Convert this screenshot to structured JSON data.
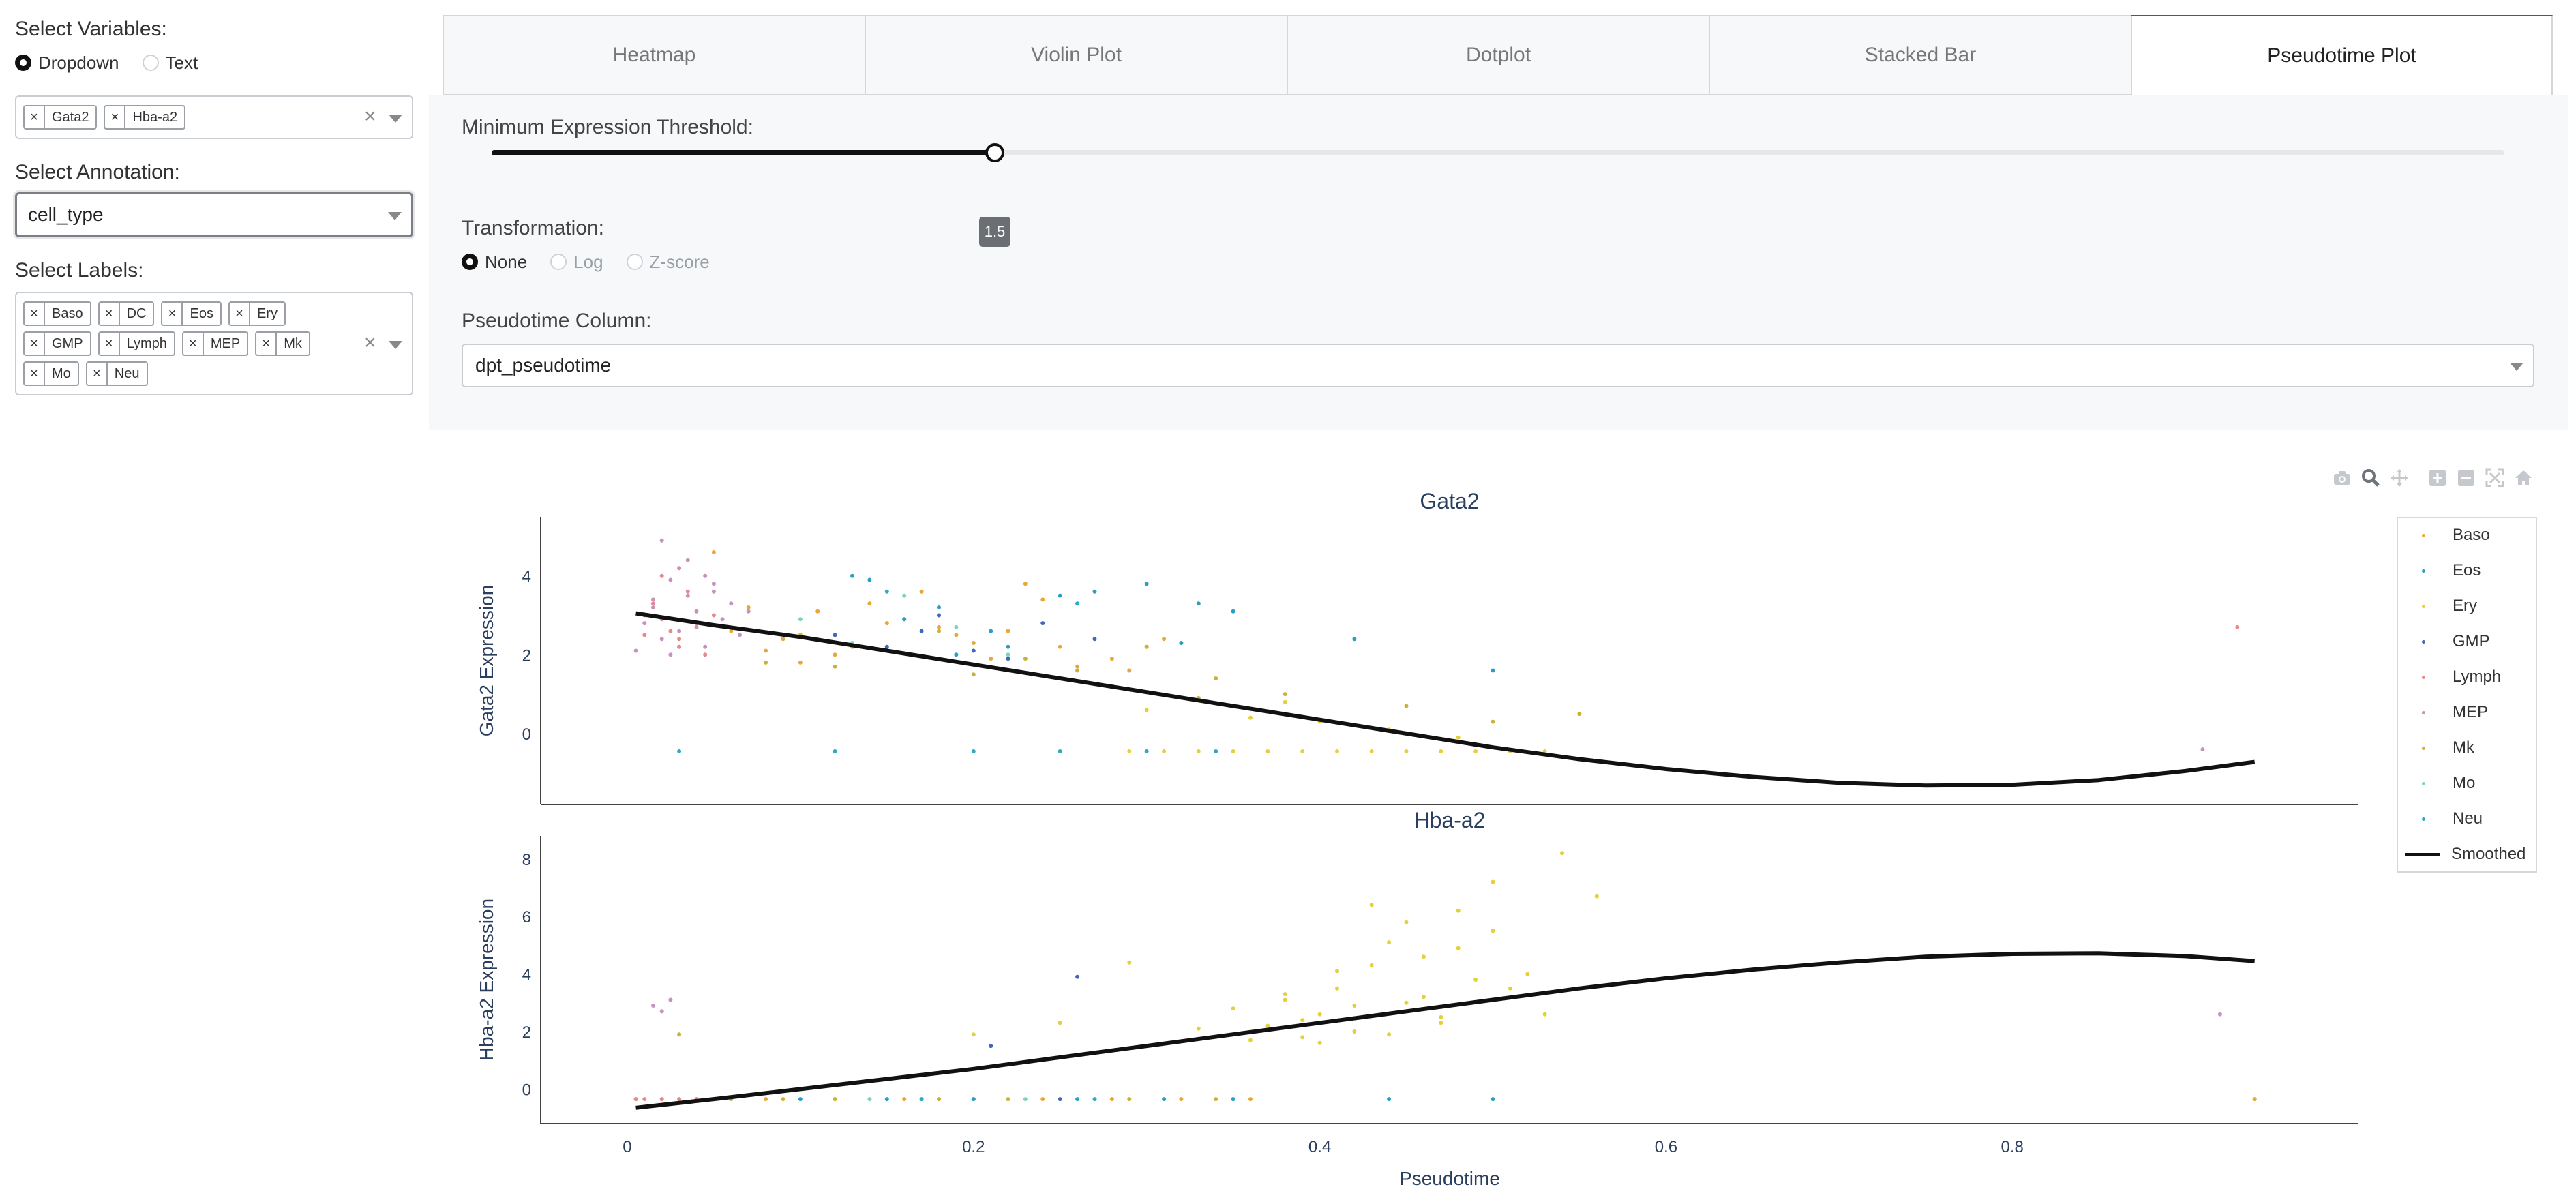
{
  "sidebar": {
    "variables_label": "Select Variables:",
    "variable_mode": {
      "options": [
        "Dropdown",
        "Text"
      ],
      "selected": "Dropdown"
    },
    "variables": [
      "Gata2",
      "Hba-a2"
    ],
    "annotation_label": "Select Annotation:",
    "annotation_value": "cell_type",
    "labels_label": "Select Labels:",
    "labels": [
      "Baso",
      "DC",
      "Eos",
      "Ery",
      "GMP",
      "Lymph",
      "MEP",
      "Mk",
      "Mo",
      "Neu"
    ],
    "clear_symbol": "×"
  },
  "tabs": [
    {
      "label": "Heatmap",
      "active": false
    },
    {
      "label": "Violin Plot",
      "active": false
    },
    {
      "label": "Dotplot",
      "active": false
    },
    {
      "label": "Stacked Bar",
      "active": false
    },
    {
      "label": "Pseudotime Plot",
      "active": true
    }
  ],
  "panel": {
    "threshold_label": "Minimum Expression Threshold:",
    "threshold": {
      "value": 1.5,
      "display": "1.5",
      "min": 0,
      "max": 6
    },
    "transformation_label": "Transformation:",
    "transformation": {
      "options": [
        "None",
        "Log",
        "Z-score"
      ],
      "selected": "None"
    },
    "pseudotime_label": "Pseudotime Column:",
    "pseudotime_value": "dpt_pseudotime"
  },
  "modebar_icons": [
    "camera-icon",
    "zoom-icon",
    "pan-icon",
    "zoom-in-icon",
    "zoom-out-icon",
    "autoscale-icon",
    "reset-axes-icon"
  ],
  "legend_colors": {
    "Baso": "#e8a838",
    "Eos": "#2a9fc4",
    "Ery": "#e6d03a",
    "GMP": "#3f68b8",
    "Lymph": "#e48a8a",
    "MEP": "#c991bd",
    "Mk": "#c9b235",
    "Mo": "#7fd3bf",
    "Neu": "#2fa8c8",
    "Smoothed": "#111111"
  },
  "chart_data": [
    {
      "type": "scatter",
      "title": "Gata2",
      "xlabel": "",
      "ylabel": "Gata2 Expression",
      "xlim": [
        -0.05,
        1.0
      ],
      "ylim": [
        -1.8,
        5.5
      ],
      "x_ticks": [
        0,
        0.2,
        0.4,
        0.6,
        0.8
      ],
      "y_ticks": [
        0,
        2,
        4
      ],
      "grid": false,
      "legend": "right",
      "series": [
        {
          "name": "Baso",
          "x": [
            0.06,
            0.09,
            0.11,
            0.13,
            0.15,
            0.17,
            0.19,
            0.21,
            0.23,
            0.07,
            0.12,
            0.16,
            0.2,
            0.26,
            0.29,
            0.31,
            0.1,
            0.18,
            0.14,
            0.08,
            0.05,
            0.22,
            0.24,
            0.25,
            0.28
          ],
          "y": [
            2.6,
            2.4,
            3.1,
            2.2,
            2.8,
            3.6,
            2.5,
            1.9,
            3.8,
            3.2,
            2.0,
            2.9,
            2.3,
            1.7,
            1.6,
            2.4,
            1.8,
            2.7,
            3.3,
            2.1,
            4.6,
            2.6,
            3.4,
            2.2,
            1.9
          ]
        },
        {
          "name": "Eos",
          "x": [
            0.14,
            0.18,
            0.21,
            0.25,
            0.3,
            0.33,
            0.35,
            0.19,
            0.16,
            0.27,
            0.42,
            0.5,
            0.32,
            0.22,
            0.13
          ],
          "y": [
            3.9,
            3.2,
            2.6,
            3.5,
            3.8,
            3.3,
            3.1,
            2.0,
            2.9,
            3.6,
            2.4,
            1.6,
            2.3,
            2.2,
            4.0
          ]
        },
        {
          "name": "Ery",
          "x": [
            0.29,
            0.31,
            0.33,
            0.35,
            0.37,
            0.39,
            0.41,
            0.43,
            0.45,
            0.47,
            0.49,
            0.51,
            0.53,
            0.3,
            0.36,
            0.44,
            0.48,
            0.4,
            0.55,
            0.38
          ],
          "y": [
            -0.45,
            -0.45,
            -0.45,
            -0.45,
            -0.45,
            -0.45,
            -0.45,
            -0.45,
            -0.45,
            -0.45,
            -0.45,
            -0.45,
            -0.45,
            0.6,
            0.4,
            0.1,
            -0.1,
            0.3,
            0.5,
            0.8
          ]
        },
        {
          "name": "GMP",
          "x": [
            0.12,
            0.15,
            0.18,
            0.2,
            0.24,
            0.27,
            0.22,
            0.17
          ],
          "y": [
            2.5,
            2.2,
            3.0,
            2.1,
            2.8,
            2.4,
            1.9,
            2.6
          ]
        },
        {
          "name": "Lymph",
          "x": [
            0.01,
            0.02,
            0.03,
            0.015,
            0.025,
            0.035,
            0.04,
            0.045,
            0.05,
            0.02,
            0.03,
            0.93
          ],
          "y": [
            2.5,
            2.9,
            2.2,
            3.3,
            2.6,
            3.6,
            2.8,
            2.0,
            3.0,
            4.0,
            2.4,
            2.7
          ]
        },
        {
          "name": "MEP",
          "x": [
            0.005,
            0.01,
            0.015,
            0.02,
            0.025,
            0.03,
            0.035,
            0.04,
            0.045,
            0.05,
            0.055,
            0.06,
            0.01,
            0.02,
            0.03,
            0.04,
            0.05,
            0.025,
            0.035,
            0.015,
            0.045,
            0.065,
            0.07,
            0.91
          ],
          "y": [
            2.1,
            2.8,
            3.4,
            2.4,
            3.9,
            2.6,
            4.4,
            3.1,
            2.2,
            3.6,
            2.9,
            3.3,
            3.0,
            4.9,
            4.2,
            2.7,
            3.8,
            2.0,
            3.5,
            3.2,
            4.0,
            2.5,
            3.1,
            -0.4
          ]
        },
        {
          "name": "Mk",
          "x": [
            0.08,
            0.1,
            0.12,
            0.15,
            0.18,
            0.2,
            0.23,
            0.26,
            0.3,
            0.34,
            0.38,
            0.45,
            0.5,
            0.55,
            0.28,
            0.33
          ],
          "y": [
            1.8,
            2.5,
            1.7,
            2.1,
            2.6,
            1.5,
            1.9,
            1.6,
            2.2,
            1.4,
            1.0,
            0.7,
            0.3,
            0.5,
            1.2,
            0.9
          ]
        },
        {
          "name": "Mo",
          "x": [
            0.1,
            0.13,
            0.16,
            0.19,
            0.22
          ],
          "y": [
            2.9,
            2.3,
            3.5,
            2.7,
            2.0
          ]
        },
        {
          "name": "Neu",
          "x": [
            0.03,
            0.12,
            0.2,
            0.25,
            0.3,
            0.34,
            0.15,
            0.26
          ],
          "y": [
            -0.45,
            -0.45,
            -0.45,
            -0.45,
            -0.45,
            -0.45,
            3.6,
            3.3
          ]
        },
        {
          "name": "Smoothed",
          "mode": "line",
          "x": [
            0.005,
            0.05,
            0.1,
            0.15,
            0.2,
            0.25,
            0.3,
            0.35,
            0.4,
            0.45,
            0.5,
            0.55,
            0.6,
            0.65,
            0.7,
            0.75,
            0.8,
            0.85,
            0.9,
            0.94
          ],
          "y": [
            3.05,
            2.75,
            2.45,
            2.1,
            1.75,
            1.4,
            1.05,
            0.7,
            0.35,
            0.0,
            -0.35,
            -0.65,
            -0.9,
            -1.1,
            -1.25,
            -1.32,
            -1.3,
            -1.18,
            -0.95,
            -0.72
          ]
        }
      ]
    },
    {
      "type": "scatter",
      "title": "Hba-a2",
      "xlabel": "Pseudotime",
      "ylabel": "Hba-a2 Expression",
      "xlim": [
        -0.05,
        1.0
      ],
      "ylim": [
        -1.2,
        8.8
      ],
      "x_ticks": [
        0,
        0.2,
        0.4,
        0.6,
        0.8
      ],
      "y_ticks": [
        0,
        2,
        4,
        6,
        8
      ],
      "grid": false,
      "legend": "right",
      "series": [
        {
          "name": "Baso",
          "x": [
            0.005,
            0.04,
            0.08,
            0.12,
            0.16,
            0.2,
            0.24,
            0.28,
            0.32,
            0.36,
            0.94
          ],
          "y": [
            -0.35,
            -0.35,
            -0.35,
            -0.35,
            -0.35,
            -0.35,
            -0.35,
            -0.35,
            -0.35,
            -0.35,
            -0.35
          ]
        },
        {
          "name": "Eos",
          "x": [
            0.1,
            0.15,
            0.2,
            0.26,
            0.31,
            0.35,
            0.44,
            0.5
          ],
          "y": [
            -0.35,
            -0.35,
            -0.35,
            -0.35,
            -0.35,
            -0.35,
            -0.35,
            -0.35
          ]
        },
        {
          "name": "Ery",
          "x": [
            0.2,
            0.25,
            0.3,
            0.33,
            0.35,
            0.37,
            0.38,
            0.39,
            0.4,
            0.41,
            0.42,
            0.43,
            0.44,
            0.45,
            0.46,
            0.47,
            0.48,
            0.49,
            0.5,
            0.52,
            0.54,
            0.56,
            0.36,
            0.41,
            0.44,
            0.47,
            0.38,
            0.43,
            0.51,
            0.29,
            0.42,
            0.45,
            0.39,
            0.46,
            0.5,
            0.53,
            0.48,
            0.4
          ],
          "y": [
            1.9,
            2.3,
            1.5,
            2.1,
            2.8,
            2.2,
            3.1,
            1.8,
            2.6,
            3.5,
            2.0,
            4.3,
            5.1,
            3.0,
            4.6,
            2.5,
            6.2,
            3.8,
            5.5,
            4.0,
            8.2,
            6.7,
            1.7,
            4.1,
            1.9,
            2.3,
            3.3,
            6.4,
            3.5,
            4.4,
            2.9,
            5.8,
            2.4,
            3.2,
            7.2,
            2.6,
            4.9,
            1.6
          ]
        },
        {
          "name": "GMP",
          "x": [
            0.21,
            0.26,
            0.25
          ],
          "y": [
            1.5,
            3.9,
            -0.35
          ]
        },
        {
          "name": "Lymph",
          "x": [
            0.005,
            0.01,
            0.02,
            0.03,
            0.04,
            0.05
          ],
          "y": [
            -0.35,
            -0.35,
            -0.35,
            -0.35,
            -0.35,
            -0.35
          ]
        },
        {
          "name": "MEP",
          "x": [
            0.015,
            0.02,
            0.025,
            0.92
          ],
          "y": [
            2.9,
            2.7,
            3.1,
            2.6
          ]
        },
        {
          "name": "Mk",
          "x": [
            0.06,
            0.09,
            0.12,
            0.18,
            0.22,
            0.29,
            0.34,
            0.03
          ],
          "y": [
            -0.35,
            -0.35,
            -0.35,
            -0.35,
            -0.35,
            -0.35,
            -0.35,
            1.9
          ]
        },
        {
          "name": "Mo",
          "x": [
            0.14,
            0.23
          ],
          "y": [
            -0.35,
            -0.35
          ]
        },
        {
          "name": "Neu",
          "x": [
            0.17,
            0.27
          ],
          "y": [
            -0.35,
            -0.35
          ]
        },
        {
          "name": "Smoothed",
          "mode": "line",
          "x": [
            0.005,
            0.05,
            0.1,
            0.15,
            0.2,
            0.25,
            0.3,
            0.35,
            0.4,
            0.45,
            0.5,
            0.55,
            0.6,
            0.65,
            0.7,
            0.75,
            0.8,
            0.85,
            0.9,
            0.94
          ],
          "y": [
            -0.65,
            -0.35,
            0.0,
            0.35,
            0.7,
            1.1,
            1.5,
            1.9,
            2.3,
            2.7,
            3.1,
            3.5,
            3.85,
            4.15,
            4.4,
            4.6,
            4.7,
            4.72,
            4.62,
            4.45
          ]
        }
      ]
    }
  ]
}
